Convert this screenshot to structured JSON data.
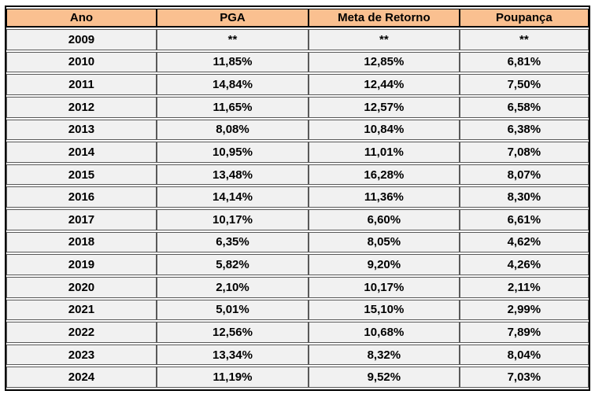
{
  "table": {
    "columns": [
      "Ano",
      "PGA",
      "Meta de Retorno",
      "Poupança"
    ],
    "rows": [
      [
        "2009",
        "**",
        "**",
        "**"
      ],
      [
        "2010",
        "11,85%",
        "12,85%",
        "6,81%"
      ],
      [
        "2011",
        "14,84%",
        "12,44%",
        "7,50%"
      ],
      [
        "2012",
        "11,65%",
        "12,57%",
        "6,58%"
      ],
      [
        "2013",
        "8,08%",
        "10,84%",
        "6,38%"
      ],
      [
        "2014",
        "10,95%",
        "11,01%",
        "7,08%"
      ],
      [
        "2015",
        "13,48%",
        "16,28%",
        "8,07%"
      ],
      [
        "2016",
        "14,14%",
        "11,36%",
        "8,30%"
      ],
      [
        "2017",
        "10,17%",
        "6,60%",
        "6,61%"
      ],
      [
        "2018",
        "6,35%",
        "8,05%",
        "4,62%"
      ],
      [
        "2019",
        "5,82%",
        "9,20%",
        "4,26%"
      ],
      [
        "2020",
        "2,10%",
        "10,17%",
        "2,11%"
      ],
      [
        "2021",
        "5,01%",
        "15,10%",
        "2,99%"
      ],
      [
        "2022",
        "12,56%",
        "10,68%",
        "7,89%"
      ],
      [
        "2023",
        "13,34%",
        "8,32%",
        "8,04%"
      ],
      [
        "2024",
        "11,19%",
        "9,52%",
        "7,03%"
      ]
    ]
  },
  "colors": {
    "header_bg": "#FAC090",
    "row_bg": "#F1F1F1",
    "cell_border": "#595959",
    "outer_border": "#000000"
  },
  "chart_data": {
    "type": "table",
    "title": "",
    "columns": [
      "Ano",
      "PGA",
      "Meta de Retorno",
      "Poupança"
    ],
    "categories": [
      "2009",
      "2010",
      "2011",
      "2012",
      "2013",
      "2014",
      "2015",
      "2016",
      "2017",
      "2018",
      "2019",
      "2020",
      "2021",
      "2022",
      "2023",
      "2024"
    ],
    "series": [
      {
        "name": "PGA",
        "values": [
          null,
          11.85,
          14.84,
          11.65,
          8.08,
          10.95,
          13.48,
          14.14,
          10.17,
          6.35,
          5.82,
          2.1,
          5.01,
          12.56,
          13.34,
          11.19
        ]
      },
      {
        "name": "Meta de Retorno",
        "values": [
          null,
          12.85,
          12.44,
          12.57,
          10.84,
          11.01,
          16.28,
          11.36,
          6.6,
          8.05,
          9.2,
          10.17,
          15.1,
          10.68,
          8.32,
          9.52
        ]
      },
      {
        "name": "Poupança",
        "values": [
          null,
          6.81,
          7.5,
          6.58,
          6.38,
          7.08,
          8.07,
          8.3,
          6.61,
          4.62,
          4.26,
          2.11,
          2.99,
          7.89,
          8.04,
          7.03
        ]
      }
    ],
    "value_unit": "%",
    "missing_value_marker": "**"
  }
}
